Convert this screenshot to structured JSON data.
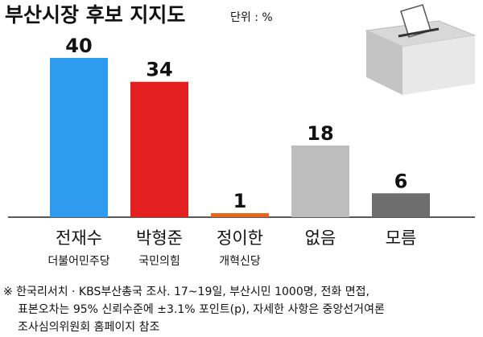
{
  "chart_data": {
    "type": "bar",
    "title": "부산시장 후보 지지도",
    "unit": "단위 : %",
    "categories": [
      "전재수",
      "박형준",
      "정이한",
      "없음",
      "모름"
    ],
    "parties": [
      "더불어민주당",
      "국민의힘",
      "개혁신당",
      null,
      null
    ],
    "values": [
      40,
      34,
      1,
      18,
      6
    ],
    "colors": [
      "#2e9bef",
      "#e3201f",
      "#e8661b",
      "#bdbdbd",
      "#6e6e6e"
    ],
    "footnote": [
      "※ 한국리서치 · KBS부산총국 조사. 17~19일, 부산시민 1000명, 전화 면접,",
      "표본오차는 95% 신뢰수준에 ±3.1% 포인트(p), 자세한 사항은 중앙선거여론",
      "조사심의위원회 홈페이지 참조"
    ]
  }
}
